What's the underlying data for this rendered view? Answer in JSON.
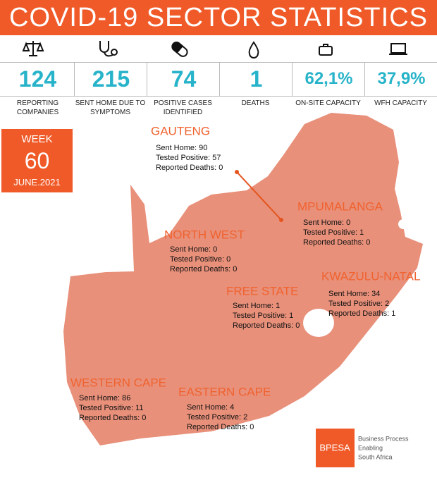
{
  "header": {
    "title": "COVID-19 SECTOR STATISTICS"
  },
  "stats": [
    {
      "value": "124",
      "label": "REPORTING COMPANIES"
    },
    {
      "value": "215",
      "label": "SENT HOME DUE TO SYMPTOMS"
    },
    {
      "value": "74",
      "label": "POSITIVE CASES IDENTIFIED"
    },
    {
      "value": "1",
      "label": "DEATHS"
    },
    {
      "value": "62,1%",
      "label": "ON-SITE CAPACITY"
    },
    {
      "value": "37,9%",
      "label": "WFH CAPACITY"
    }
  ],
  "week": {
    "label": "WEEK",
    "number": "60",
    "date": "JUNE.2021"
  },
  "regions": [
    {
      "name": "GAUTENG",
      "lines": [
        "Sent Home: 90",
        "Tested Positive: 57",
        "Reported Deaths: 0"
      ]
    },
    {
      "name": "MPUMALANGA",
      "lines": [
        "Sent Home: 0",
        "Tested Positive: 1",
        "Reported Deaths: 0"
      ]
    },
    {
      "name": "NORTH WEST",
      "lines": [
        "Sent Home: 0",
        "Tested Positive: 0",
        "Reported Deaths: 0"
      ]
    },
    {
      "name": "KWAZULU-NATAL",
      "lines": [
        "Sent Home: 34",
        "Tested Positive: 2",
        "Reported Deaths: 1"
      ]
    },
    {
      "name": "FREE STATE",
      "lines": [
        "Sent Home: 1",
        "Tested Positive: 1",
        "Reported Deaths: 0"
      ]
    },
    {
      "name": "WESTERN CAPE",
      "lines": [
        "Sent Home: 86",
        "Tested Positive: 11",
        "Reported Deaths: 0"
      ]
    },
    {
      "name": "EASTERN CAPE",
      "lines": [
        "Sent Home: 4",
        "Tested Positive: 2",
        "Reported Deaths: 0"
      ]
    }
  ],
  "logo": {
    "mark": "BPESA",
    "text": [
      "Business Process",
      "Enabling",
      "South Africa"
    ]
  }
}
